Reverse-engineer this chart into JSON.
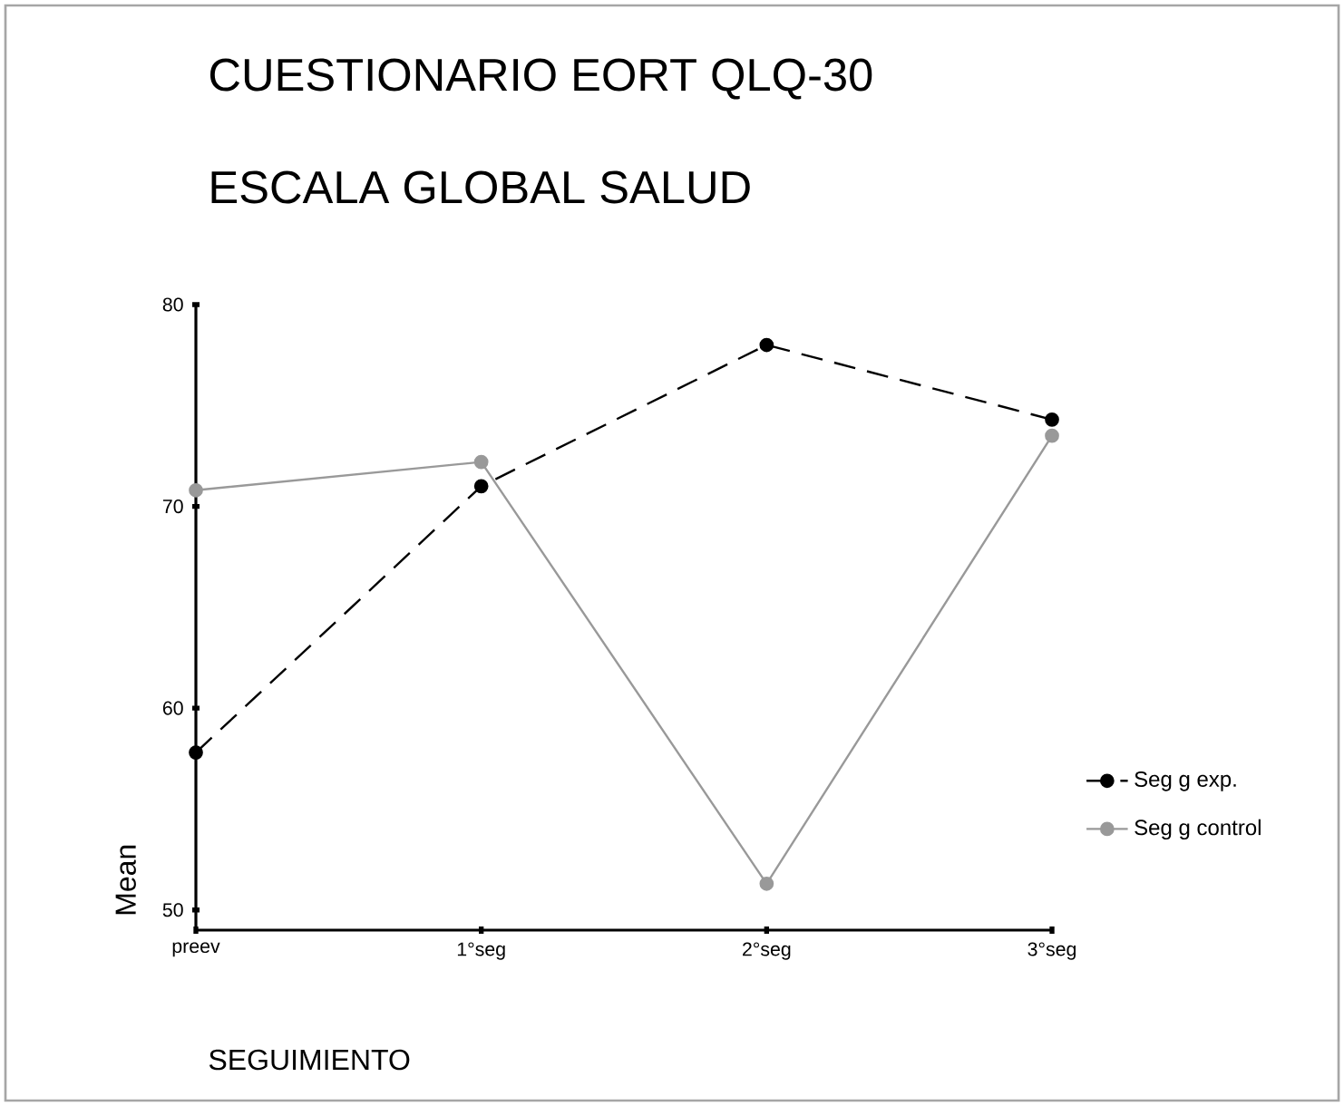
{
  "chart_data": {
    "type": "line",
    "title": "CUESTIONARIO EORT QLQ-30",
    "subtitle": "ESCALA GLOBAL SALUD",
    "xlabel": "SEGUIMIENTO",
    "ylabel": "Mean",
    "categories": [
      "preev",
      "1°seg",
      "2°seg",
      "3°seg"
    ],
    "series": [
      {
        "name": "Seg g exp.",
        "color": "#000000",
        "line_style": "dashed",
        "values": [
          57.8,
          71,
          78,
          74.3
        ]
      },
      {
        "name": "Seg g control",
        "color": "#999999",
        "line_style": "solid",
        "values": [
          70.8,
          72.2,
          51.3,
          73.5
        ]
      }
    ],
    "ylim": [
      49,
      80
    ],
    "yticks": [
      50,
      60,
      70,
      80
    ],
    "marker": "circle",
    "legend": "right",
    "grid": false
  }
}
